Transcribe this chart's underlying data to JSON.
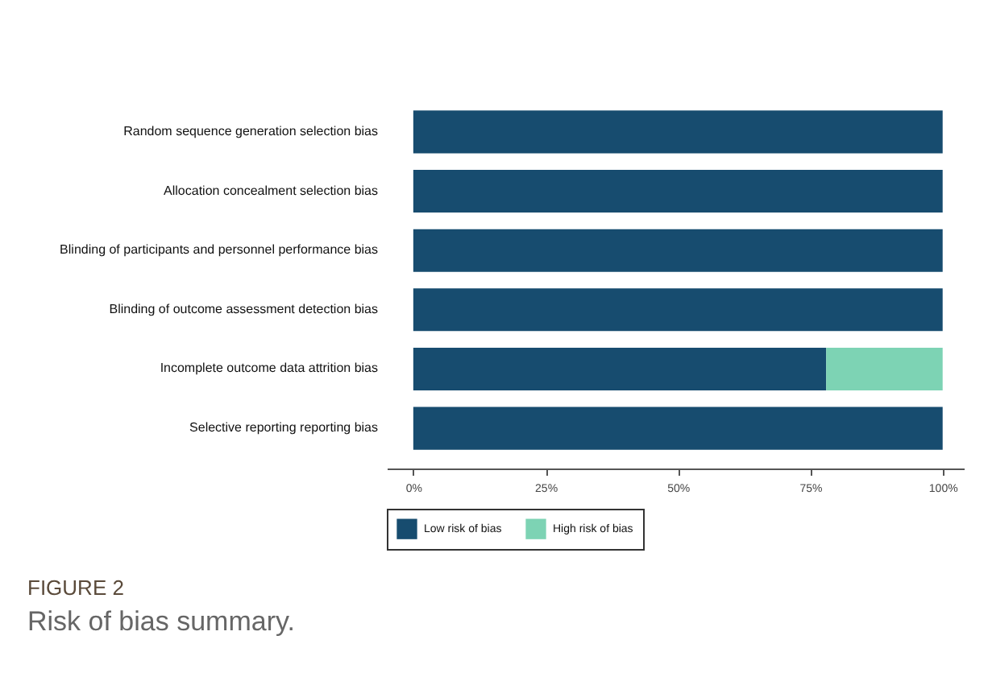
{
  "chart_data": {
    "type": "bar",
    "orientation": "horizontal",
    "stacked": true,
    "title": "FIGURE 2",
    "subtitle": "Risk of bias summary.",
    "categories": [
      "Random sequence generation  selection bias",
      "Allocation concealment  selection bias",
      "Blinding of participants and personnel  performance bias",
      "Blinding of outcome assessment  detection bias",
      "Incomplete outcome data  attrition bias",
      "Selective reporting  reporting bias"
    ],
    "series": [
      {
        "name": "Low risk of bias",
        "color": "#174c6f",
        "values": [
          100,
          100,
          100,
          100,
          78,
          100
        ]
      },
      {
        "name": "High risk of bias",
        "color": "#7dd3b4",
        "values": [
          0,
          0,
          0,
          0,
          22,
          0
        ]
      }
    ],
    "xlim": [
      -5,
      104
    ],
    "xticks": [
      {
        "value": 0,
        "label": "0%"
      },
      {
        "value": 25,
        "label": "25%"
      },
      {
        "value": 50,
        "label": "50%"
      },
      {
        "value": 75,
        "label": "75%"
      },
      {
        "value": 100,
        "label": "100%"
      }
    ],
    "legend": "bottom",
    "grid": false
  }
}
